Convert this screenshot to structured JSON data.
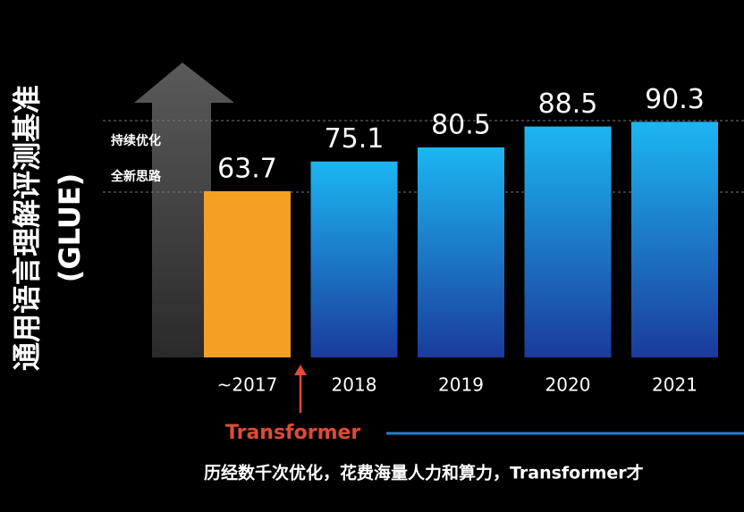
{
  "chart_data": {
    "type": "bar",
    "y_axis_label": "通用语言理解评测基准",
    "y_axis_sublabel": "(GLUE)",
    "categories": [
      "~2017",
      "2018",
      "2019",
      "2020",
      "2021"
    ],
    "values": [
      63.7,
      75.1,
      80.5,
      88.5,
      90.3
    ],
    "colors": [
      "#f4a023",
      "#1aa6ec",
      "#1aa6ec",
      "#1aa6ec",
      "#1aa6ec"
    ],
    "ylim": [
      0,
      100
    ],
    "annotations": {
      "upper": "持续优化",
      "lower": "全新思路",
      "marker": "Transformer"
    },
    "caption": "历经数千次优化，花费海量人力和算力，Transformer才"
  }
}
